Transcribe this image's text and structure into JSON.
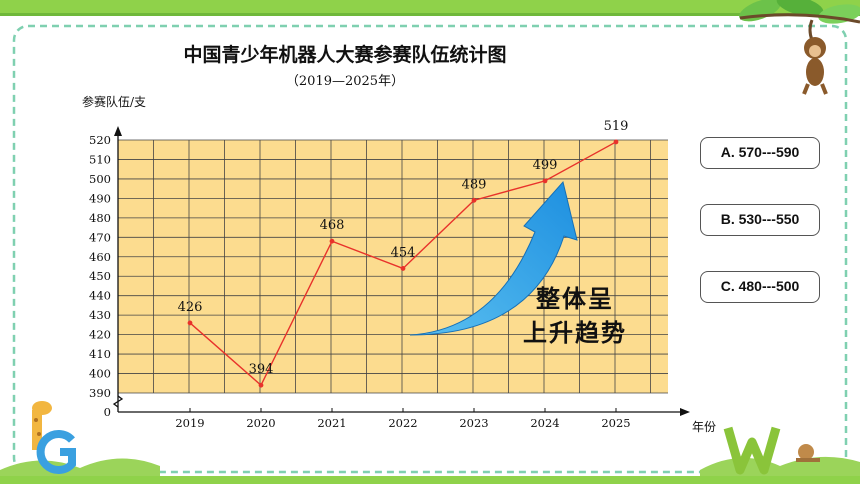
{
  "chart_data": {
    "type": "line",
    "title": "中国青少年机器人大赛参赛队伍统计图",
    "subtitle": "（2019—2025年）",
    "ylabel": "参赛队伍/支",
    "xlabel": "年份",
    "categories": [
      "2019",
      "2020",
      "2021",
      "2022",
      "2023",
      "2024",
      "2025"
    ],
    "values": [
      426,
      394,
      468,
      454,
      489,
      499,
      519
    ],
    "data_labels": [
      "426",
      "394",
      "468",
      "454",
      "489",
      "499",
      "519"
    ],
    "y_ticks": [
      "0",
      "390",
      "400",
      "410",
      "420",
      "430",
      "440",
      "450",
      "460",
      "470",
      "480",
      "490",
      "500",
      "510",
      "520"
    ],
    "ylim": [
      390,
      520
    ],
    "axis_break": true,
    "grid": true,
    "line_color": "#e8322b",
    "plot_bg": "#fcdc8f"
  },
  "annotation": {
    "line1": "整体呈",
    "line2": "上升趋势"
  },
  "options": [
    {
      "label": "A. 570---590"
    },
    {
      "label": "B. 530---550"
    },
    {
      "label": "C. 480---500"
    }
  ],
  "colors": {
    "frame_green": "#7fd0b0",
    "header_green": "#8fd24a",
    "arrow_blue": "#1d8fe0"
  }
}
